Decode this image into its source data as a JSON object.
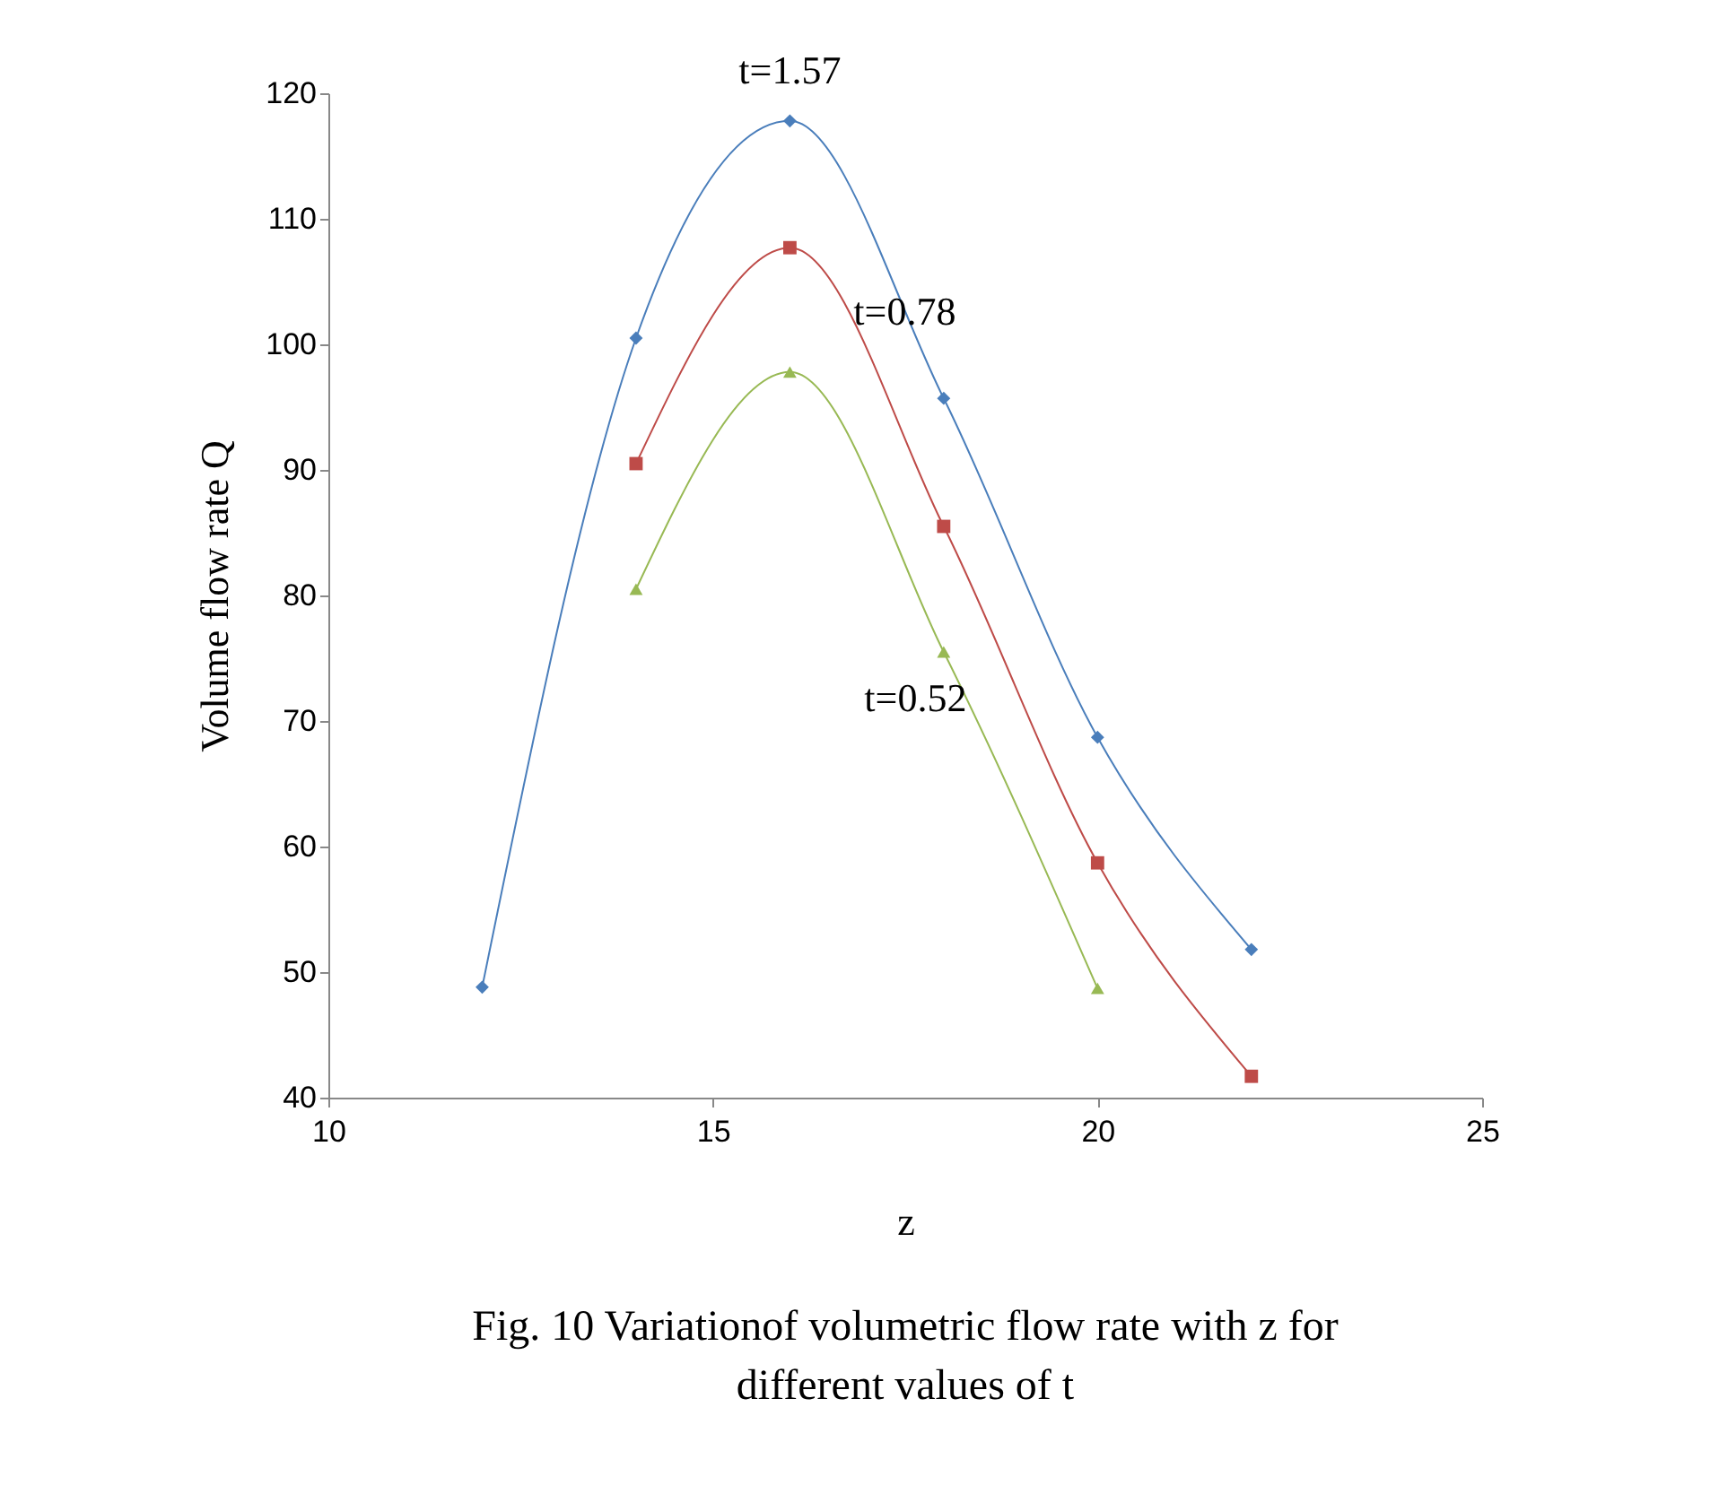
{
  "chart_data": {
    "type": "line",
    "xlabel": "z",
    "ylabel": "Volume flow rate Q",
    "annotations": [
      "Fig. 10 Variationof volumetric flow rate with z for",
      "different values of t"
    ],
    "x": [
      12,
      14,
      16,
      18,
      20,
      22
    ],
    "series": [
      {
        "name": "t=1.57",
        "color": "#4a7ebb",
        "marker": "diamond",
        "values": [
          48.8,
          100.5,
          117.8,
          95.7,
          68.7,
          51.8
        ]
      },
      {
        "name": "t=0.78",
        "color": "#be4b48",
        "marker": "square",
        "values": [
          null,
          90.5,
          107.7,
          85.5,
          58.7,
          41.7
        ]
      },
      {
        "name": "t=0.52",
        "color": "#98b954",
        "marker": "triangle",
        "values": [
          null,
          80.5,
          97.8,
          75.5,
          48.7,
          null
        ]
      }
    ],
    "xlim": [
      10,
      25
    ],
    "xticks": [
      10,
      15,
      20,
      25
    ],
    "ylim": [
      40,
      120
    ],
    "yticks": [
      40,
      50,
      60,
      70,
      80,
      90,
      100,
      110,
      120
    ],
    "grid": false,
    "line_style": "solid"
  }
}
